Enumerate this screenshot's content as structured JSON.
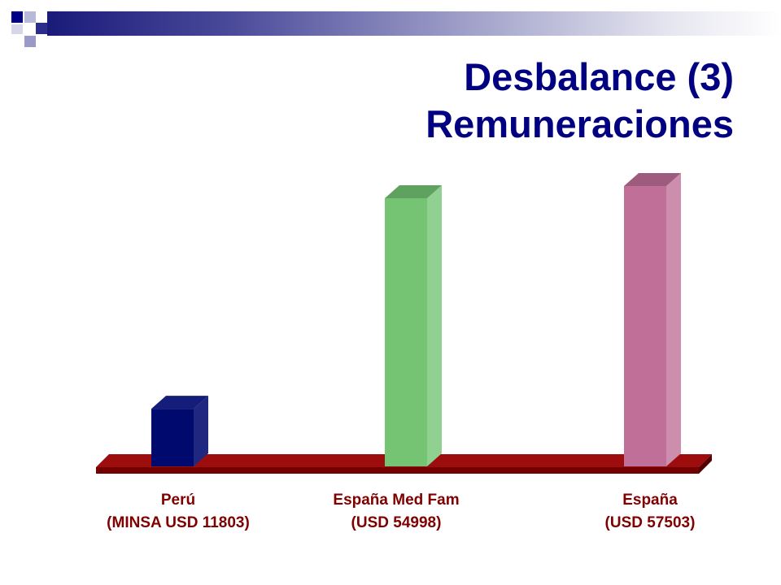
{
  "slide": {
    "title_line1": "Desbalance (3)",
    "title_line2": "Remuneraciones"
  },
  "colors": {
    "title": "#000080",
    "labels": "#800000",
    "floor": "#990000",
    "header_band_dark": "#1a1a7a"
  },
  "chart_data": {
    "type": "bar",
    "style": "3d-column",
    "categories": [
      [
        "Perú",
        "(MINSA USD 11803)"
      ],
      [
        "España Med Fam",
        "(USD 54998)"
      ],
      [
        "España",
        "(USD 57503)"
      ]
    ],
    "values": [
      11803,
      54998,
      57503
    ],
    "colors": [
      "#000a6e",
      "#74c474",
      "#c07098"
    ],
    "ylim": [
      0,
      60000
    ],
    "grid": false,
    "legend": "none"
  }
}
